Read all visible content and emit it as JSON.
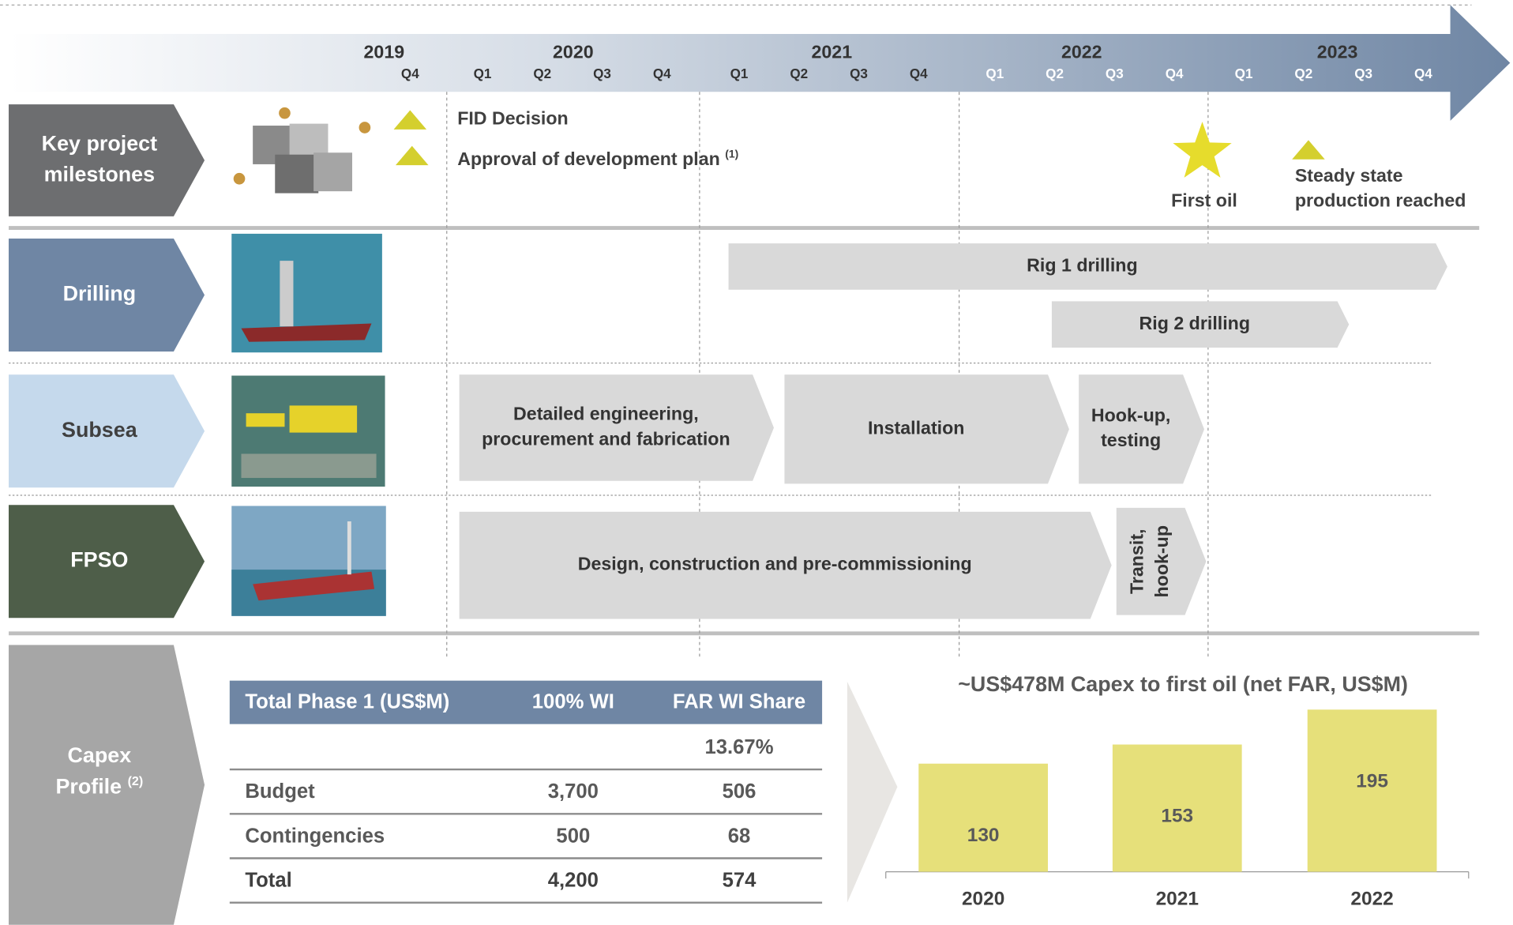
{
  "timeline": {
    "years": [
      {
        "label": "2019",
        "quarters": [
          "Q4"
        ]
      },
      {
        "label": "2020",
        "quarters": [
          "Q1",
          "Q2",
          "Q3",
          "Q4"
        ]
      },
      {
        "label": "2021",
        "quarters": [
          "Q1",
          "Q2",
          "Q3",
          "Q4"
        ]
      },
      {
        "label": "2022",
        "quarters": [
          "Q1",
          "Q2",
          "Q3",
          "Q4"
        ]
      },
      {
        "label": "2023",
        "quarters": [
          "Q1",
          "Q2",
          "Q3",
          "Q4"
        ]
      }
    ]
  },
  "rows": [
    {
      "label": [
        "Key project",
        "milestones"
      ]
    },
    {
      "label": [
        "Drilling"
      ]
    },
    {
      "label": [
        "Subsea"
      ]
    },
    {
      "label": [
        "FPSO"
      ]
    },
    {
      "label": [
        "Capex",
        "Profile"
      ],
      "note": "(2)"
    }
  ],
  "milestones": [
    {
      "label": [
        "FID Decision"
      ]
    },
    {
      "label": [
        "Approval of development plan"
      ],
      "note": "(1)"
    },
    {
      "label": [
        "First oil"
      ]
    },
    {
      "label": [
        "Steady state",
        "production reached"
      ]
    }
  ],
  "activities": [
    {
      "label": [
        "Rig 1 drilling"
      ]
    },
    {
      "label": [
        "Rig 2 drilling"
      ]
    },
    {
      "label": [
        "Detailed engineering,",
        "procurement and fabrication"
      ]
    },
    {
      "label": [
        "Installation"
      ]
    },
    {
      "label": [
        "Hook-up,",
        "testing"
      ]
    },
    {
      "label": [
        "Design, construction and pre-commissioning"
      ]
    },
    {
      "label": [
        "Transit,",
        "hook-up"
      ]
    }
  ],
  "table": {
    "header": [
      "Total Phase 1 (US$M)",
      "100% WI",
      "FAR WI Share"
    ],
    "share": "13.67%",
    "rows": [
      [
        "Budget",
        "3,700",
        "506"
      ],
      [
        "Contingencies",
        "500",
        "68"
      ],
      [
        "Total",
        "4,200",
        "574"
      ]
    ]
  },
  "chart_data": {
    "type": "bar",
    "title": "~US$478M Capex to first oil (net FAR, US$M)",
    "categories": [
      "2020",
      "2021",
      "2022"
    ],
    "values": [
      130,
      153,
      195
    ],
    "color": "#e6e07a"
  }
}
